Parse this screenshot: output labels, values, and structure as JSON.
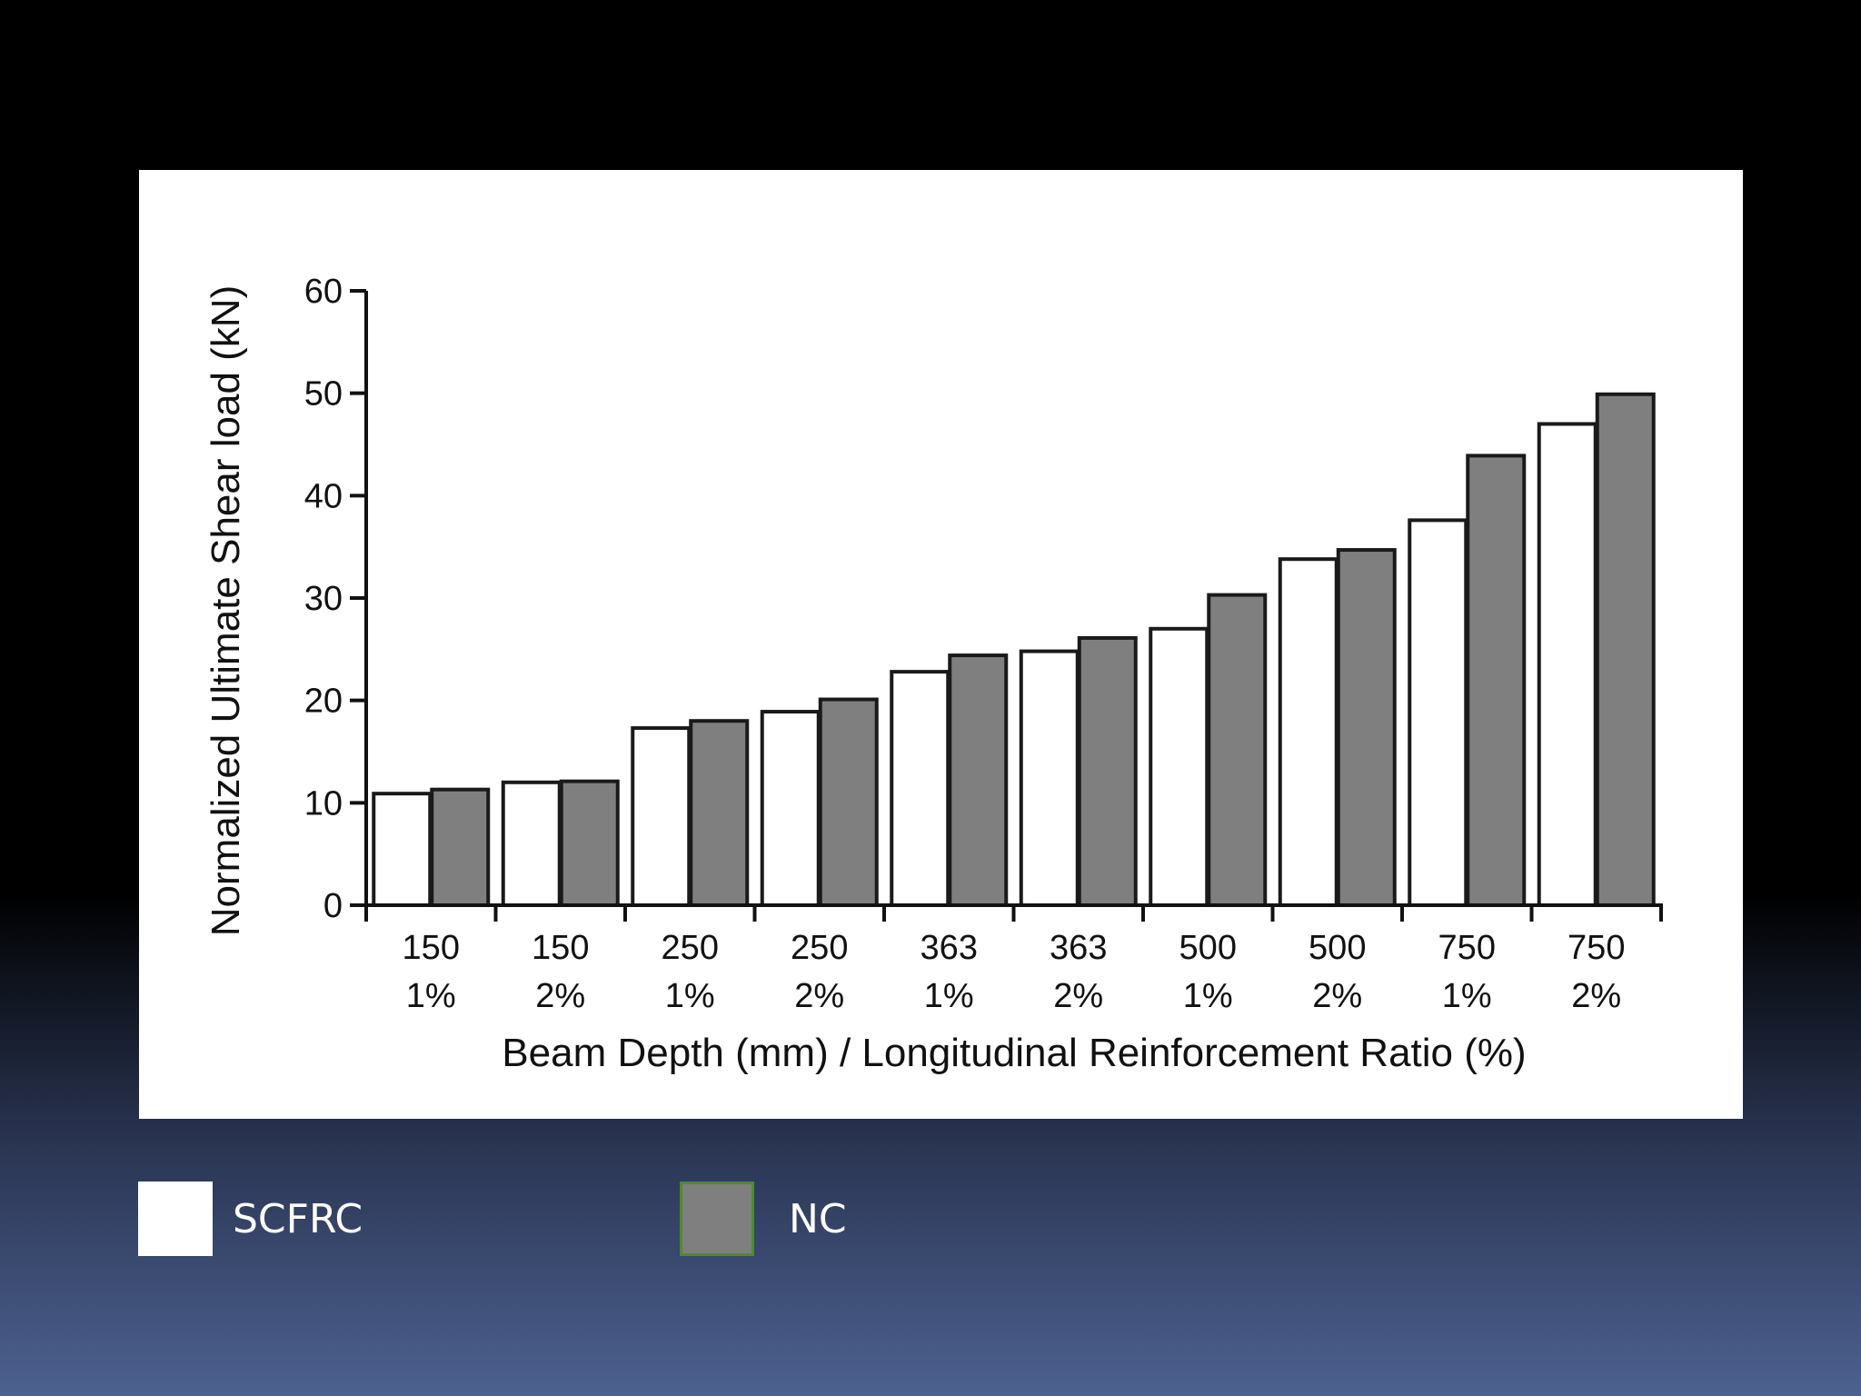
{
  "chart_data": {
    "type": "bar",
    "title": "",
    "xlabel": "Beam Depth (mm) / Longitudinal Reinforcement Ratio (%)",
    "ylabel": "Normalized Ultimate Shear load (kN)",
    "ylim": [
      0,
      60
    ],
    "yticks": [
      "0",
      "10",
      "20",
      "30",
      "40",
      "50",
      "60"
    ],
    "categories": [
      {
        "depth": "150",
        "ratio": "1%"
      },
      {
        "depth": "150",
        "ratio": "2%"
      },
      {
        "depth": "250",
        "ratio": "1%"
      },
      {
        "depth": "250",
        "ratio": "2%"
      },
      {
        "depth": "363",
        "ratio": "1%"
      },
      {
        "depth": "363",
        "ratio": "2%"
      },
      {
        "depth": "500",
        "ratio": "1%"
      },
      {
        "depth": "500",
        "ratio": "2%"
      },
      {
        "depth": "750",
        "ratio": "1%"
      },
      {
        "depth": "750",
        "ratio": "2%"
      }
    ],
    "series": [
      {
        "name": "SCFRC",
        "color": "#ffffff",
        "values": [
          10.9,
          12.0,
          17.3,
          18.9,
          22.8,
          24.8,
          27.0,
          33.8,
          37.6,
          47.0
        ]
      },
      {
        "name": "NC",
        "color": "#7f7f7f",
        "values": [
          11.3,
          12.1,
          18.0,
          20.1,
          24.4,
          26.1,
          30.3,
          34.7,
          43.9,
          49.9
        ]
      }
    ],
    "grid": false,
    "legend_placement": "bottom-left, below chart"
  },
  "legend": {
    "items": [
      {
        "label": "SCFRC"
      },
      {
        "label": "NC"
      }
    ]
  }
}
